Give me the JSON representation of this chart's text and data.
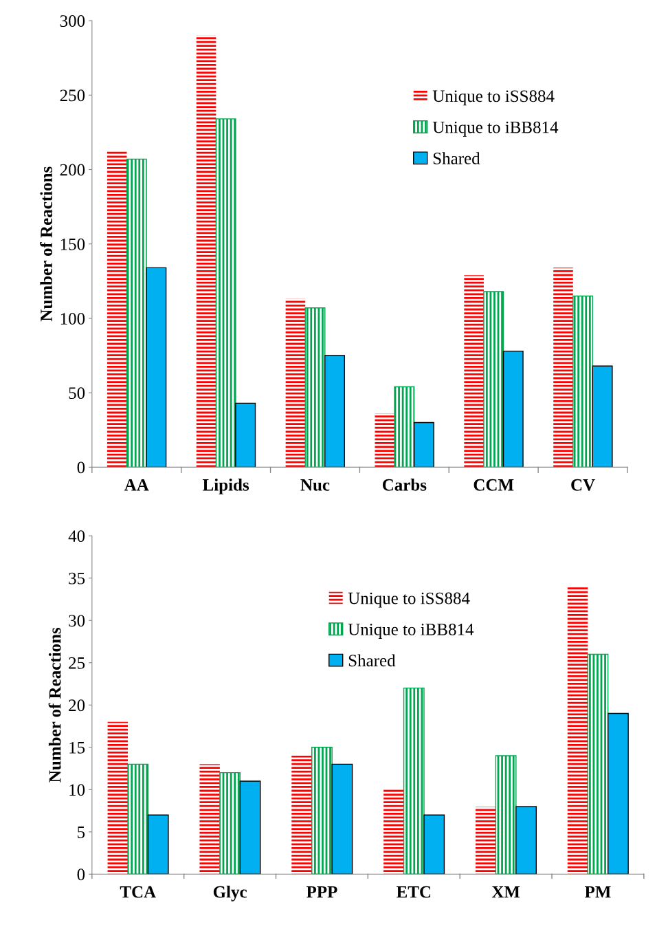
{
  "chart_data": [
    {
      "type": "bar",
      "ylabel": "Number of Reactions",
      "categories": [
        "AA",
        "Lipids",
        "Nuc",
        "Carbs",
        "CCM",
        "CV"
      ],
      "ylim": [
        0,
        300
      ],
      "yticks": [
        0,
        50,
        100,
        150,
        200,
        250,
        300
      ],
      "legend": "top right",
      "grid": false,
      "series": [
        {
          "name": "Unique to iSS884",
          "color": "#ff0000",
          "values": [
            213,
            290,
            113,
            36,
            129,
            134
          ]
        },
        {
          "name": "Unique to iBB814",
          "color": "#00a650",
          "values": [
            207,
            234,
            107,
            54,
            118,
            115
          ]
        },
        {
          "name": "Shared",
          "color": "#00b0f0",
          "values": [
            134,
            43,
            75,
            30,
            78,
            68
          ]
        }
      ]
    },
    {
      "type": "bar",
      "ylabel": "Number of Reactions",
      "categories": [
        "TCA",
        "Glyc",
        "PPP",
        "ETC",
        "XM",
        "PM"
      ],
      "ylim": [
        0,
        40
      ],
      "yticks": [
        0,
        5,
        10,
        15,
        20,
        25,
        30,
        35,
        40
      ],
      "legend": "top right",
      "grid": false,
      "series": [
        {
          "name": "Unique to iSS884",
          "color": "#ff0000",
          "values": [
            18,
            13,
            14,
            10,
            8,
            34
          ]
        },
        {
          "name": "Unique to iBB814",
          "color": "#00a650",
          "values": [
            13,
            12,
            15,
            22,
            14,
            26
          ]
        },
        {
          "name": "Shared",
          "color": "#00b0f0",
          "values": [
            7,
            11,
            13,
            7,
            8,
            19
          ]
        }
      ]
    }
  ]
}
